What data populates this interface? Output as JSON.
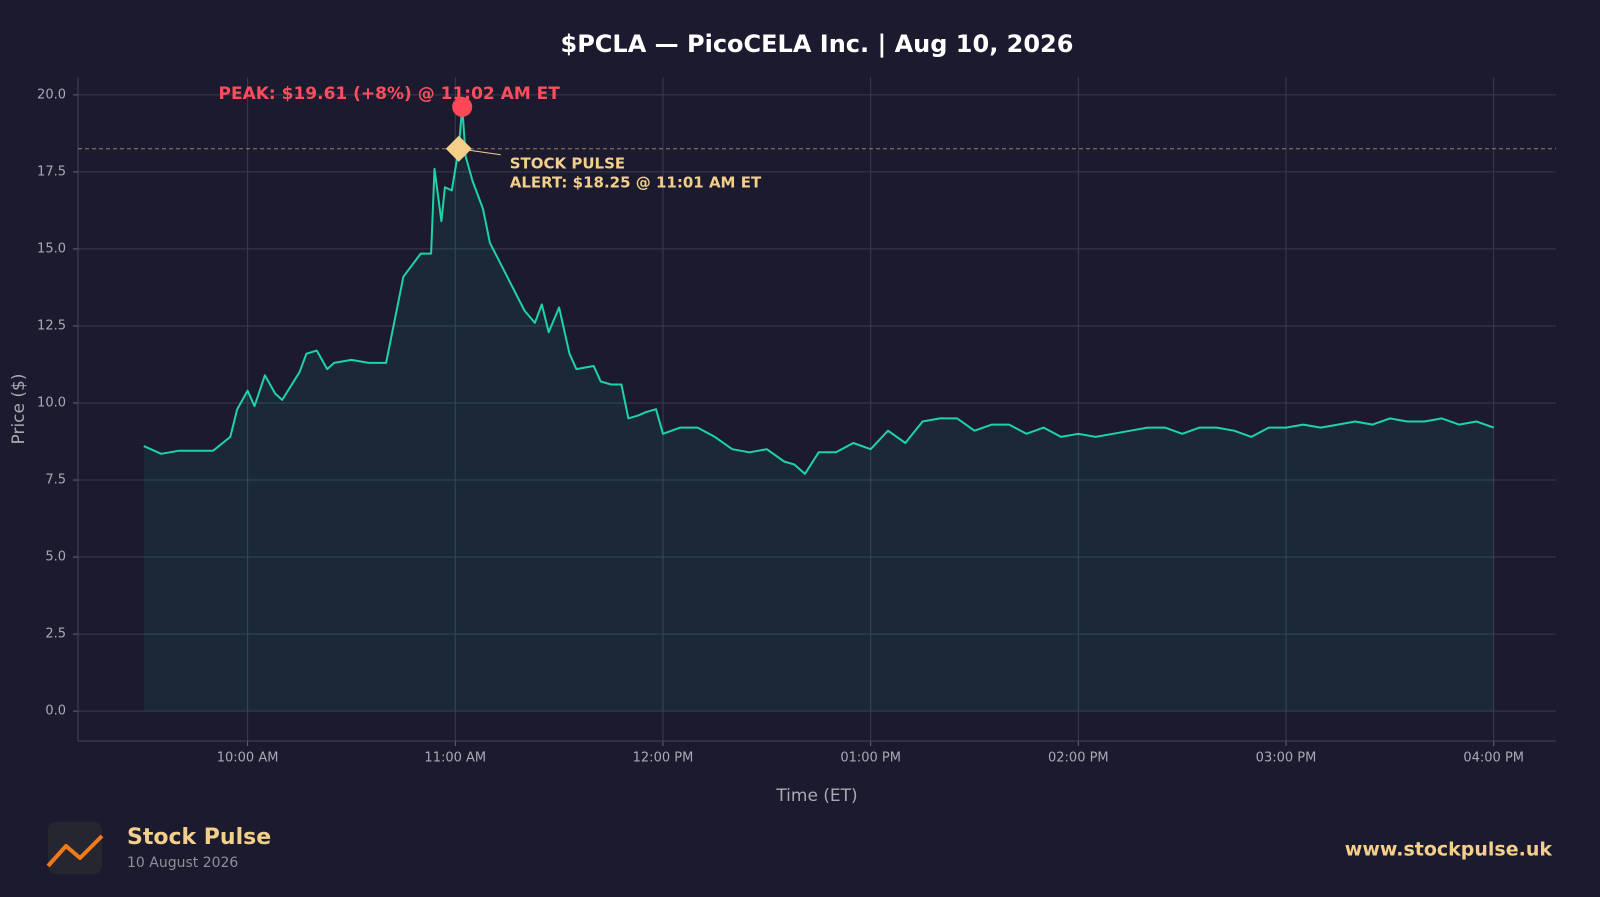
{
  "chart_data": {
    "type": "line",
    "title": "$PCLA — PicoCELA Inc.  |  Aug 10, 2026",
    "x_label": "Time (ET)",
    "y_label": "Price ($)",
    "color": "#1fd3a6",
    "grid": true,
    "x": [
      "09:30",
      "09:35",
      "09:40",
      "09:45",
      "09:50",
      "09:55",
      "09:57",
      "10:00",
      "10:02",
      "10:05",
      "10:08",
      "10:10",
      "10:15",
      "10:17",
      "10:20",
      "10:23",
      "10:25",
      "10:30",
      "10:35",
      "10:40",
      "10:45",
      "10:50",
      "10:53",
      "10:54",
      "10:56",
      "10:57",
      "10:59",
      "11:01",
      "11:02",
      "11:03",
      "11:05",
      "11:08",
      "11:10",
      "11:15",
      "11:20",
      "11:23",
      "11:25",
      "11:27",
      "11:30",
      "11:33",
      "11:35",
      "11:40",
      "11:42",
      "11:45",
      "11:48",
      "11:50",
      "11:53",
      "11:55",
      "11:58",
      "12:00",
      "12:05",
      "12:10",
      "12:15",
      "12:20",
      "12:25",
      "12:30",
      "12:35",
      "12:38",
      "12:41",
      "12:45",
      "12:50",
      "12:55",
      "13:00",
      "13:05",
      "13:10",
      "13:15",
      "13:20",
      "13:25",
      "13:30",
      "13:35",
      "13:40",
      "13:45",
      "13:50",
      "13:55",
      "14:00",
      "14:05",
      "14:10",
      "14:15",
      "14:20",
      "14:25",
      "14:30",
      "14:35",
      "14:40",
      "14:45",
      "14:50",
      "14:55",
      "15:00",
      "15:05",
      "15:10",
      "15:15",
      "15:20",
      "15:25",
      "15:30",
      "15:35",
      "15:40",
      "15:45",
      "15:50",
      "15:55",
      "16:00"
    ],
    "values": [
      8.6,
      8.35,
      8.45,
      8.45,
      8.45,
      8.9,
      9.8,
      10.4,
      9.9,
      10.9,
      10.3,
      10.1,
      11.0,
      11.6,
      11.7,
      11.1,
      11.3,
      11.4,
      11.3,
      11.3,
      14.1,
      14.85,
      14.85,
      17.6,
      15.9,
      17.0,
      16.9,
      18.25,
      19.61,
      18.0,
      17.2,
      16.3,
      15.2,
      14.1,
      13.0,
      12.6,
      13.2,
      12.3,
      13.1,
      11.6,
      11.1,
      11.2,
      10.7,
      10.6,
      10.6,
      9.5,
      9.6,
      9.7,
      9.8,
      9.0,
      9.2,
      9.2,
      8.9,
      8.5,
      8.4,
      8.5,
      8.1,
      8.0,
      7.7,
      8.4,
      8.4,
      8.7,
      8.5,
      9.1,
      8.7,
      9.4,
      9.5,
      9.5,
      9.1,
      9.3,
      9.3,
      9.0,
      9.2,
      8.9,
      9.0,
      8.9,
      9.0,
      9.1,
      9.2,
      9.2,
      9.0,
      9.2,
      9.2,
      9.1,
      8.9,
      9.2,
      9.2,
      9.3,
      9.2,
      9.3,
      9.4,
      9.3,
      9.5,
      9.4,
      9.4,
      9.5,
      9.3,
      9.4,
      9.2
    ],
    "xlim": [
      "09:11",
      "16:18"
    ],
    "xticks": [
      {
        "value": "10:00",
        "label": "10:00 AM"
      },
      {
        "value": "11:00",
        "label": "11:00 AM"
      },
      {
        "value": "12:00",
        "label": "12:00 PM"
      },
      {
        "value": "13:00",
        "label": "01:00 PM"
      },
      {
        "value": "14:00",
        "label": "02:00 PM"
      },
      {
        "value": "15:00",
        "label": "03:00 PM"
      },
      {
        "value": "16:00",
        "label": "04:00 PM"
      }
    ],
    "ylim": [
      -0.97,
      20.58
    ],
    "yticks": [
      {
        "value": 0,
        "label": "0.0"
      },
      2.5,
      {
        "value": 5,
        "label": "5.0"
      },
      7.5,
      {
        "value": 10,
        "label": "10.0"
      },
      12.5,
      {
        "value": 15,
        "label": "15.0"
      },
      17.5,
      {
        "value": 20,
        "label": "20.0"
      }
    ],
    "peak": {
      "x": "11:02",
      "value": 19.61,
      "label": "PEAK: $19.61 (+8%) @ 11:02 AM ET"
    },
    "alert": {
      "x": "11:01",
      "value": 18.25,
      "label_lines": [
        "STOCK PULSE",
        "ALERT: $18.25 @ 11:01 AM ET"
      ]
    }
  },
  "footer": {
    "brand": "Stock Pulse",
    "date": "10 August 2026",
    "website": "www.stockpulse.uk"
  }
}
